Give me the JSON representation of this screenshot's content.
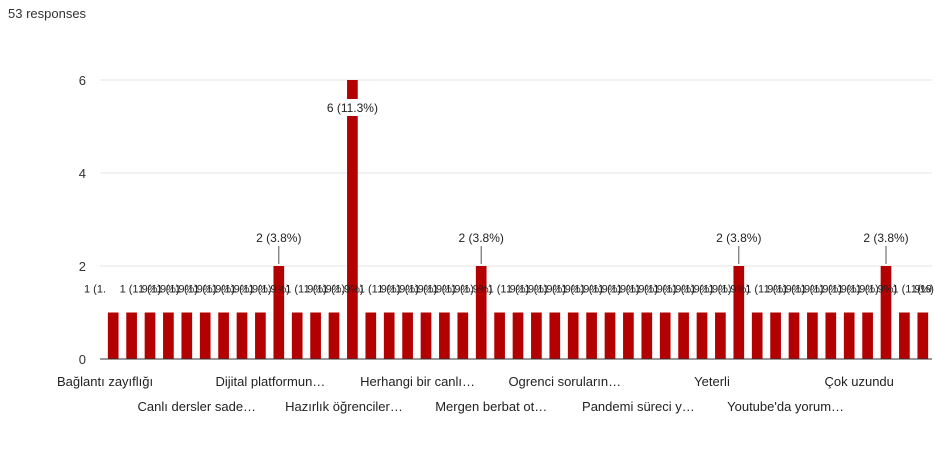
{
  "header": {
    "responses_text": "53 responses"
  },
  "colors": {
    "bar": "#b30000",
    "grid": "#e4e4e4",
    "axis": "#333333",
    "label_bg": "#ffffff"
  },
  "chart_data": {
    "type": "bar",
    "ylim": [
      0,
      6
    ],
    "yticks": [
      0,
      2,
      4,
      6
    ],
    "grid": true,
    "values": [
      1,
      1,
      1,
      1,
      1,
      1,
      1,
      1,
      1,
      2,
      1,
      1,
      1,
      6,
      1,
      1,
      1,
      1,
      1,
      1,
      2,
      1,
      1,
      1,
      1,
      1,
      1,
      1,
      1,
      1,
      1,
      1,
      1,
      1,
      2,
      1,
      1,
      1,
      1,
      1,
      1,
      1,
      2,
      1,
      1
    ],
    "visible_categories": [
      {
        "index": 0,
        "label": "Bağlantı zayıflığı",
        "row": 0
      },
      {
        "index": 4,
        "label": "Canlı dersler sade…",
        "row": 1
      },
      {
        "index": 8,
        "label": "Dijital platformun…",
        "row": 0
      },
      {
        "index": 12,
        "label": "Hazırlık öğrenciler…",
        "row": 1
      },
      {
        "index": 16,
        "label": "Herhangi bir canlı…",
        "row": 0
      },
      {
        "index": 20,
        "label": "Mergen berbat ot…",
        "row": 1
      },
      {
        "index": 24,
        "label": "Ogrenci soruların…",
        "row": 0
      },
      {
        "index": 28,
        "label": "Pandemi süreci y…",
        "row": 1
      },
      {
        "index": 32,
        "label": "Yeterli",
        "row": 0
      },
      {
        "index": 36,
        "label": "Youtube'da yorum…",
        "row": 1
      },
      {
        "index": 40,
        "label": "Çok uzundu",
        "row": 0
      }
    ],
    "data_labels": [
      {
        "index": 9,
        "text": "2 (3.8%)"
      },
      {
        "index": 13,
        "text": "6 (11.3%)"
      },
      {
        "index": 20,
        "text": "2 (3.8%)"
      },
      {
        "index": 34,
        "text": "2 (3.8%)"
      },
      {
        "index": 42,
        "text": "2 (3.8%)"
      }
    ],
    "small_label_text": "1 (1.9%)",
    "small_label_first": "1 (1.",
    "small_label_last": "1 (1.9"
  }
}
